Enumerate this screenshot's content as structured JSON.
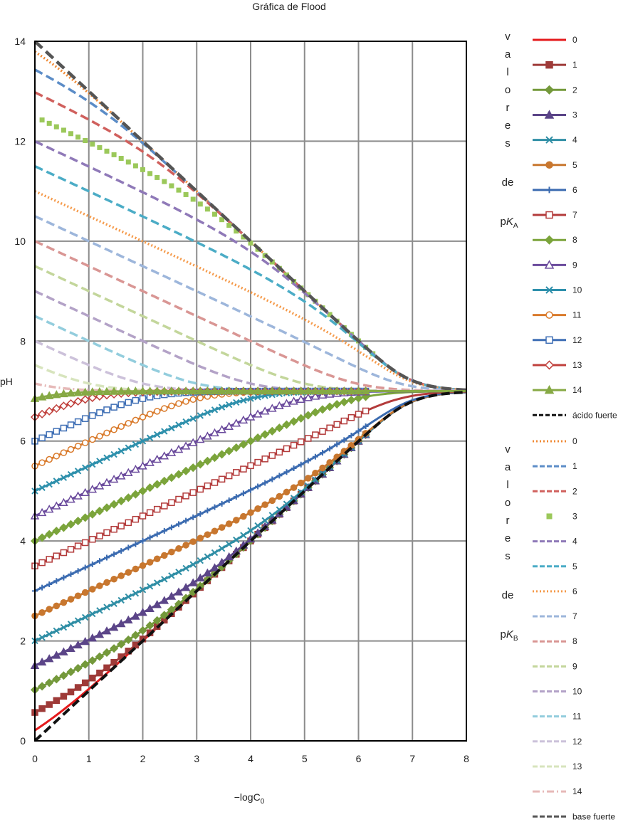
{
  "chart_data": {
    "type": "line",
    "title": "Gráfica de Flood",
    "xlabel": "−logC",
    "xlabel_sub": "0",
    "ylabel": "pH",
    "xlim": [
      0,
      8
    ],
    "ylim": [
      0,
      14
    ],
    "x_ticks": [
      0,
      1,
      2,
      3,
      4,
      5,
      6,
      7,
      8
    ],
    "y_ticks": [
      0,
      2,
      4,
      6,
      8,
      10,
      12,
      14
    ],
    "grid": true,
    "legend_position": "right",
    "legend_groups": [
      {
        "label_letters": [
          "v",
          "a",
          "l",
          "o",
          "r",
          "e",
          "s"
        ],
        "label_de": "de",
        "label_p": "p",
        "label_k": "K",
        "label_sub": "A"
      },
      {
        "label_letters": [
          "v",
          "a",
          "l",
          "o",
          "r",
          "e",
          "s"
        ],
        "label_de": "de",
        "label_p": "p",
        "label_k": "K",
        "label_sub": "B"
      }
    ],
    "acid_series": [
      {
        "name": "0",
        "pKa": 0,
        "color": "#e41a1c",
        "marker": "none"
      },
      {
        "name": "1",
        "pKa": 1,
        "color": "#9e3a38",
        "marker": "square"
      },
      {
        "name": "2",
        "pKa": 2,
        "color": "#74993b",
        "marker": "diamond"
      },
      {
        "name": "3",
        "pKa": 3,
        "color": "#5b4588",
        "marker": "triangle"
      },
      {
        "name": "4",
        "pKa": 4,
        "color": "#2f8ea5",
        "marker": "x"
      },
      {
        "name": "5",
        "pKa": 5,
        "color": "#c8772f",
        "marker": "circle"
      },
      {
        "name": "6",
        "pKa": 6,
        "color": "#3b6bb0",
        "marker": "plus"
      },
      {
        "name": "7",
        "pKa": 7,
        "color": "#b33b3b",
        "marker": "open-square"
      },
      {
        "name": "8",
        "pKa": 8,
        "color": "#7ba43b",
        "marker": "diamond"
      },
      {
        "name": "9",
        "pKa": 9,
        "color": "#6a4a9c",
        "marker": "open-triangle"
      },
      {
        "name": "10",
        "pKa": 10,
        "color": "#2e90ac",
        "marker": "x"
      },
      {
        "name": "11",
        "pKa": 11,
        "color": "#d97a2b",
        "marker": "open-circle"
      },
      {
        "name": "12",
        "pKa": 12,
        "color": "#3f6fb5",
        "marker": "open-square"
      },
      {
        "name": "13",
        "pKa": 13,
        "color": "#c0403c",
        "marker": "open-diamond"
      },
      {
        "name": "14",
        "pKa": 14,
        "color": "#86a944",
        "marker": "triangle"
      }
    ],
    "acid_strong": {
      "name": "ácido fuerte",
      "color": "#111111"
    },
    "base_series": [
      {
        "name": "0",
        "pKb": 0,
        "color": "#f08a35",
        "style": "dotted"
      },
      {
        "name": "1",
        "pKb": 1,
        "color": "#5b8cc7",
        "style": "dashed"
      },
      {
        "name": "2",
        "pKb": 2,
        "color": "#d0605d",
        "style": "dashed"
      },
      {
        "name": "3",
        "pKb": 3,
        "color": "#9bc85a",
        "style": "squares"
      },
      {
        "name": "4",
        "pKb": 4,
        "color": "#8f79b8",
        "style": "dashed"
      },
      {
        "name": "5",
        "pKb": 5,
        "color": "#4bacc6",
        "style": "dashed"
      },
      {
        "name": "6",
        "pKb": 6,
        "color": "#f59a4a",
        "style": "dotted"
      },
      {
        "name": "7",
        "pKb": 7,
        "color": "#9db6db",
        "style": "dashed"
      },
      {
        "name": "8",
        "pKb": 8,
        "color": "#d99694",
        "style": "dashed"
      },
      {
        "name": "9",
        "pKb": 9,
        "color": "#c3d69b",
        "style": "dashed"
      },
      {
        "name": "10",
        "pKb": 10,
        "color": "#b3a2c7",
        "style": "dashed"
      },
      {
        "name": "11",
        "pKb": 11,
        "color": "#93cddd",
        "style": "dashed"
      },
      {
        "name": "12",
        "pKb": 12,
        "color": "#ccc1da",
        "style": "dashed"
      },
      {
        "name": "13",
        "pKb": 13,
        "color": "#d7e4bd",
        "style": "dashed"
      },
      {
        "name": "14",
        "pKb": 14,
        "color": "#e6b9b8",
        "style": "dashdot"
      }
    ],
    "base_strong": {
      "name": "base fuerte",
      "color": "#555555"
    }
  }
}
